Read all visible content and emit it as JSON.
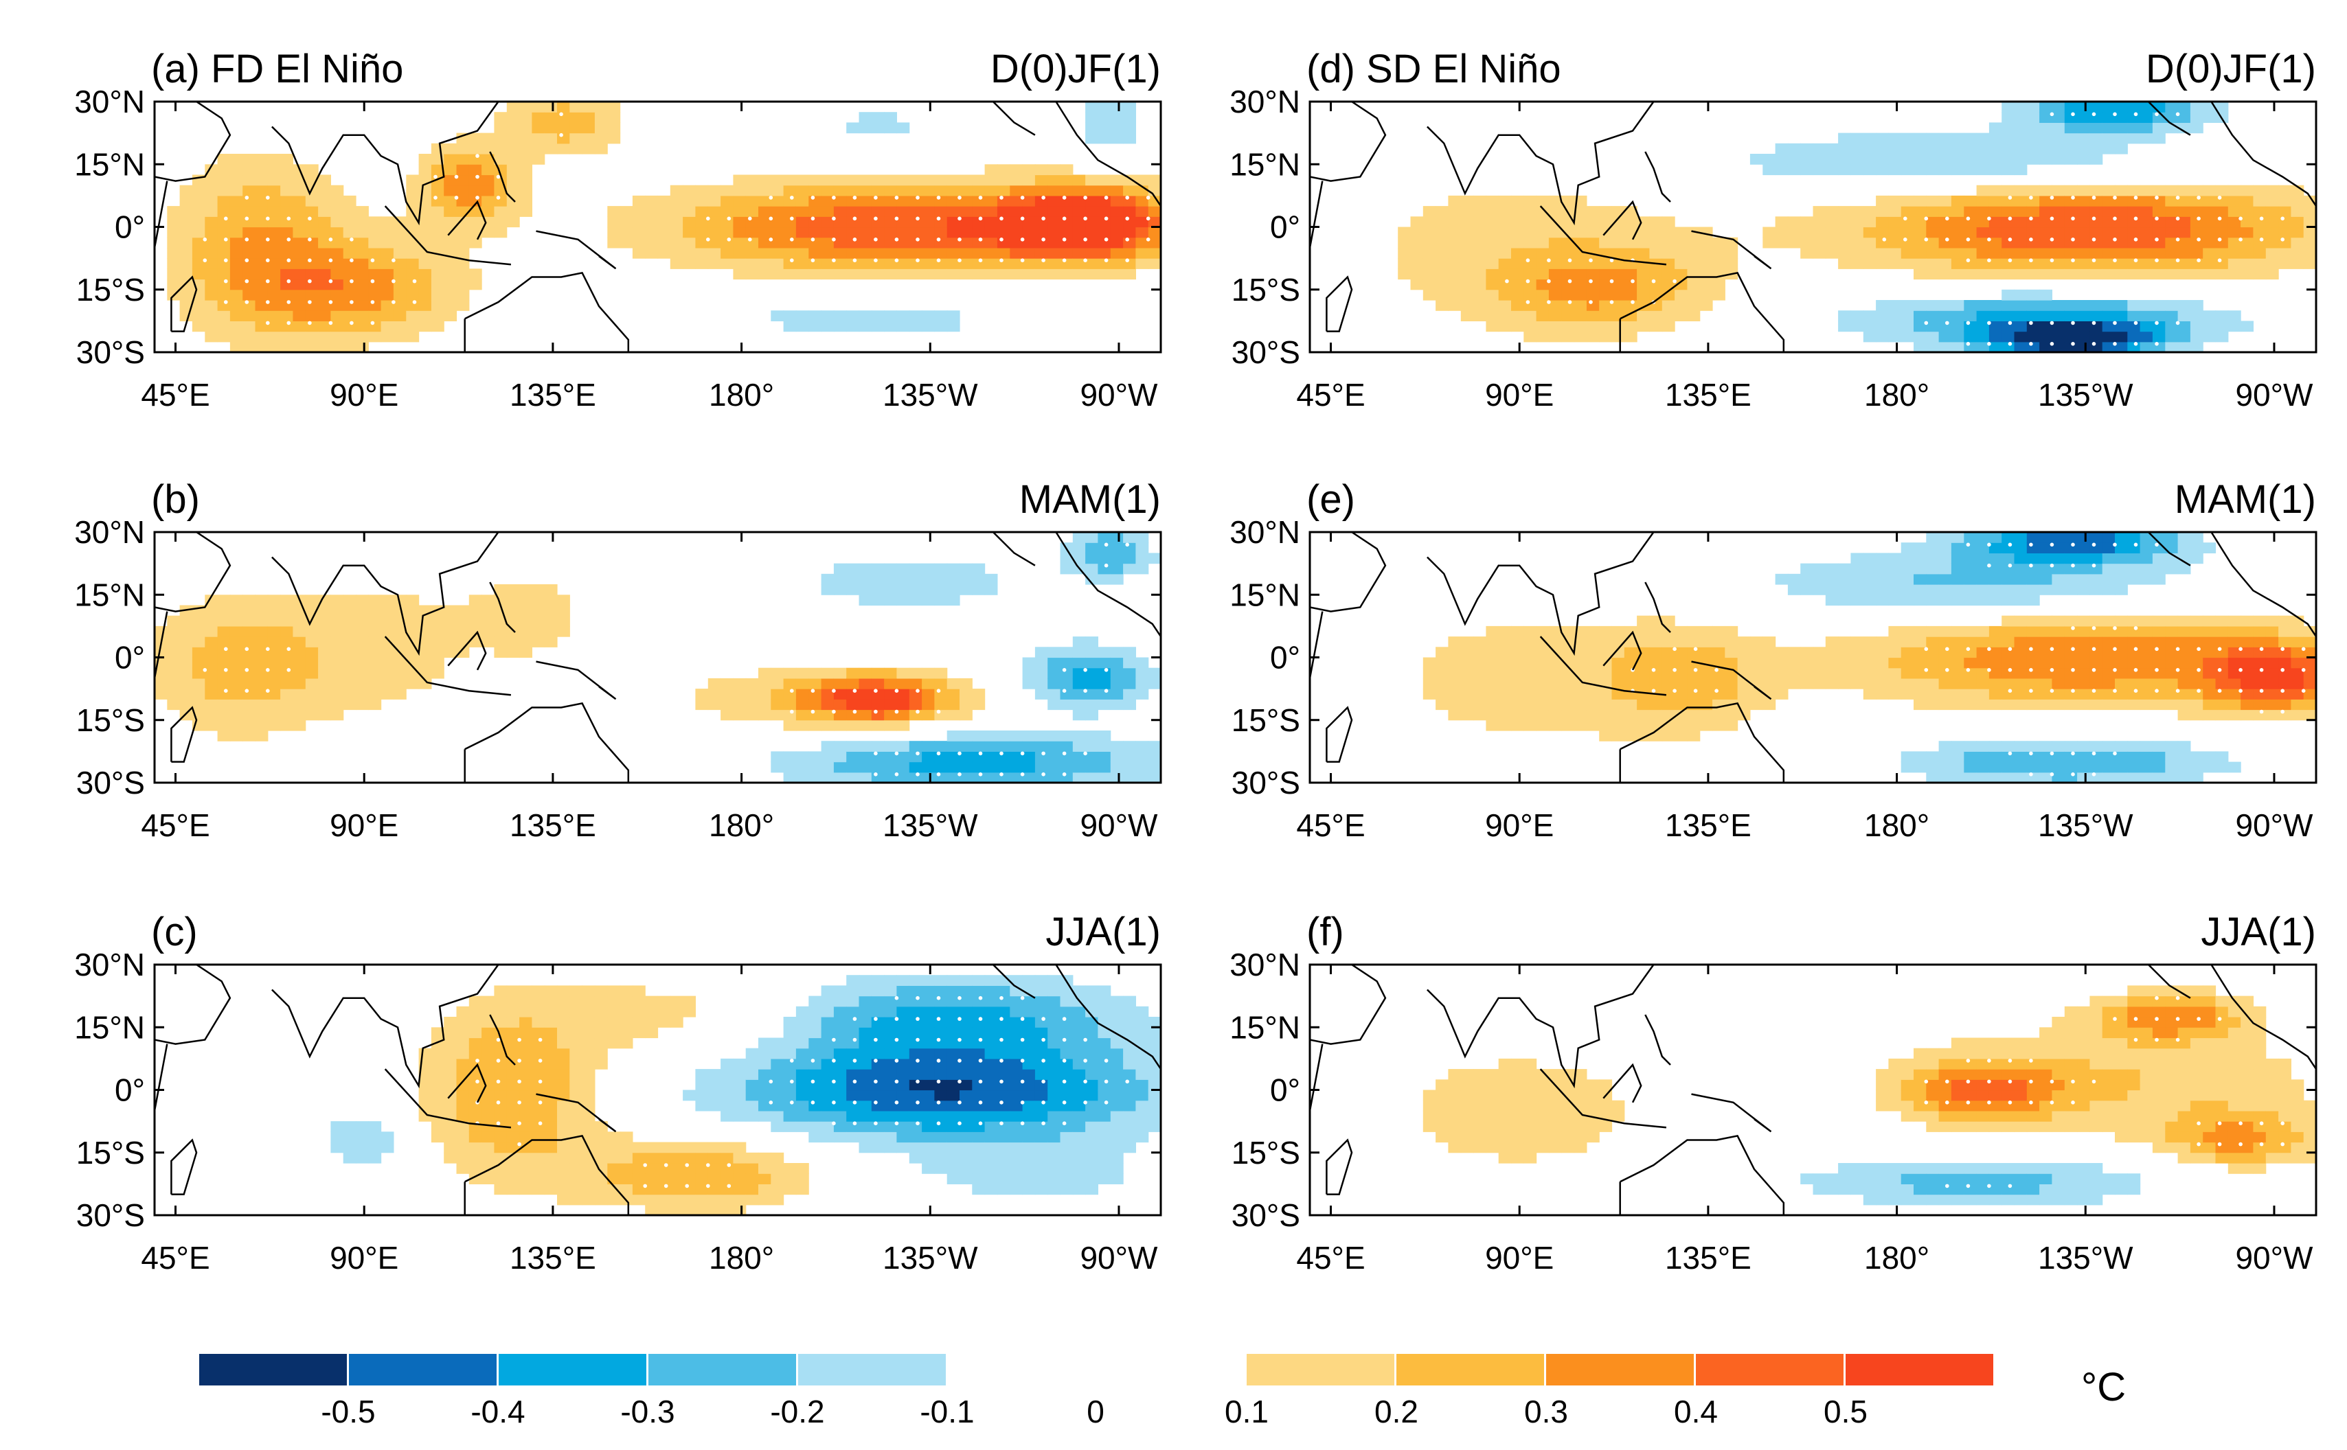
{
  "figure": {
    "colorbar_unit": "°C",
    "zero_label": "0"
  },
  "chart_data": {
    "type": "heatmap",
    "description_units": "SST anomaly (°C), stippling = significant",
    "axes": {
      "lon_ticks": [
        "45°E",
        "90°E",
        "135°E",
        "180°",
        "135°W",
        "90°W"
      ],
      "lon_tick_values": [
        45,
        90,
        135,
        180,
        225,
        270
      ],
      "lat_ticks": [
        "30°N",
        "15°N",
        "0°",
        "15°S",
        "30°S"
      ],
      "lat_tick_values": [
        30,
        15,
        0,
        -15,
        -30
      ],
      "xlim": [
        40,
        280
      ],
      "ylim": [
        -30,
        30
      ]
    },
    "colorbar": {
      "negative_colors": [
        "#08306b",
        "#0a6bbb",
        "#02a8e0",
        "#4cbde6",
        "#a8dff4"
      ],
      "negative_labels": [
        "-0.5",
        "-0.4",
        "-0.3",
        "-0.2",
        "-0.1"
      ],
      "positive_colors": [
        "#fdd882",
        "#fcbc3f",
        "#fb8f1e",
        "#fb6421",
        "#f7451e"
      ],
      "positive_labels": [
        "0.1",
        "0.2",
        "0.3",
        "0.4",
        "0.5"
      ]
    },
    "panels": [
      {
        "id": "a",
        "label": "(a) FD El Niño",
        "season": "D(0)JF(1)",
        "blobs": [
          {
            "lon": 220,
            "lat": 0,
            "rx": 58,
            "ry": 11,
            "v": 0.5
          },
          {
            "lon": 262,
            "lat": 1,
            "rx": 18,
            "ry": 8,
            "v": 0.55
          },
          {
            "lon": 210,
            "lat": -22,
            "rx": 40,
            "ry": 6,
            "v": -0.15
          },
          {
            "lon": 212,
            "lat": 24,
            "rx": 18,
            "ry": 8,
            "v": -0.12
          },
          {
            "lon": 268,
            "lat": 25,
            "rx": 8,
            "ry": 8,
            "v": -0.2
          },
          {
            "lon": 65,
            "lat": -5,
            "rx": 22,
            "ry": 22,
            "v": 0.3
          },
          {
            "lon": 90,
            "lat": -15,
            "rx": 25,
            "ry": 12,
            "v": 0.3
          },
          {
            "lon": 115,
            "lat": 10,
            "rx": 12,
            "ry": 10,
            "v": 0.35
          },
          {
            "lon": 138,
            "lat": 25,
            "rx": 15,
            "ry": 8,
            "v": 0.25
          }
        ]
      },
      {
        "id": "b",
        "label": "(b)",
        "season": "MAM(1)",
        "blobs": [
          {
            "lon": 60,
            "lat": -2,
            "rx": 22,
            "ry": 18,
            "v": 0.25
          },
          {
            "lon": 95,
            "lat": 3,
            "rx": 22,
            "ry": 18,
            "v": 0.15
          },
          {
            "lon": 130,
            "lat": 10,
            "rx": 15,
            "ry": 12,
            "v": 0.15
          },
          {
            "lon": 205,
            "lat": -10,
            "rx": 38,
            "ry": 8,
            "v": 0.25
          },
          {
            "lon": 212,
            "lat": -10,
            "rx": 14,
            "ry": 5,
            "v": 0.4
          },
          {
            "lon": 235,
            "lat": -25,
            "rx": 45,
            "ry": 7,
            "v": -0.35
          },
          {
            "lon": 262,
            "lat": -5,
            "rx": 16,
            "ry": 8,
            "v": -0.35
          },
          {
            "lon": 220,
            "lat": 18,
            "rx": 35,
            "ry": 8,
            "v": -0.15
          },
          {
            "lon": 268,
            "lat": 25,
            "rx": 10,
            "ry": 6,
            "v": -0.3
          }
        ]
      },
      {
        "id": "c",
        "label": "(c)",
        "season": "JJA(1)",
        "blobs": [
          {
            "lon": 228,
            "lat": 0,
            "rx": 50,
            "ry": 12,
            "v": -0.5
          },
          {
            "lon": 230,
            "lat": 18,
            "rx": 42,
            "ry": 10,
            "v": -0.3
          },
          {
            "lon": 250,
            "lat": -20,
            "rx": 28,
            "ry": 8,
            "v": -0.15
          },
          {
            "lon": 125,
            "lat": 0,
            "rx": 22,
            "ry": 22,
            "v": 0.3
          },
          {
            "lon": 170,
            "lat": -20,
            "rx": 28,
            "ry": 9,
            "v": 0.3
          },
          {
            "lon": 165,
            "lat": 18,
            "rx": 30,
            "ry": 10,
            "v": 0.15
          },
          {
            "lon": 90,
            "lat": -12,
            "rx": 10,
            "ry": 8,
            "v": -0.2
          },
          {
            "lon": 75,
            "lat": 10,
            "rx": 8,
            "ry": 6,
            "v": 0.1
          }
        ]
      },
      {
        "id": "d",
        "label": "(d) SD El Niño",
        "season": "D(0)JF(1)",
        "blobs": [
          {
            "lon": 225,
            "lat": 0,
            "rx": 55,
            "ry": 12,
            "v": 0.5
          },
          {
            "lon": 195,
            "lat": 15,
            "rx": 60,
            "ry": 8,
            "v": -0.25
          },
          {
            "lon": 215,
            "lat": -22,
            "rx": 45,
            "ry": 7,
            "v": -0.35
          },
          {
            "lon": 222,
            "lat": -27,
            "rx": 20,
            "ry": 4,
            "v": -0.5
          },
          {
            "lon": 232,
            "lat": 28,
            "rx": 22,
            "ry": 5,
            "v": -0.4
          },
          {
            "lon": 90,
            "lat": -5,
            "rx": 45,
            "ry": 22,
            "v": 0.15
          },
          {
            "lon": 110,
            "lat": -15,
            "rx": 25,
            "ry": 10,
            "v": 0.25
          }
        ]
      },
      {
        "id": "e",
        "label": "(e)",
        "season": "MAM(1)",
        "blobs": [
          {
            "lon": 225,
            "lat": 0,
            "rx": 55,
            "ry": 12,
            "v": 0.4
          },
          {
            "lon": 270,
            "lat": -5,
            "rx": 15,
            "ry": 8,
            "v": 0.45
          },
          {
            "lon": 200,
            "lat": 17,
            "rx": 55,
            "ry": 9,
            "v": -0.25
          },
          {
            "lon": 222,
            "lat": 28,
            "rx": 25,
            "ry": 5,
            "v": -0.45
          },
          {
            "lon": 220,
            "lat": -25,
            "rx": 40,
            "ry": 6,
            "v": -0.3
          },
          {
            "lon": 95,
            "lat": -5,
            "rx": 45,
            "ry": 20,
            "v": 0.15
          },
          {
            "lon": 130,
            "lat": -5,
            "rx": 18,
            "ry": 12,
            "v": 0.2
          }
        ]
      },
      {
        "id": "f",
        "label": "(f)",
        "season": "JJA(1)",
        "blobs": [
          {
            "lon": 232,
            "lat": 2,
            "rx": 52,
            "ry": 14,
            "v": 0.2
          },
          {
            "lon": 200,
            "lat": 0,
            "rx": 18,
            "ry": 7,
            "v": 0.35
          },
          {
            "lon": 245,
            "lat": 18,
            "rx": 18,
            "ry": 6,
            "v": 0.35
          },
          {
            "lon": 262,
            "lat": -12,
            "rx": 18,
            "ry": 7,
            "v": 0.3
          },
          {
            "lon": 200,
            "lat": -22,
            "rx": 45,
            "ry": 6,
            "v": -0.25
          },
          {
            "lon": 200,
            "lat": 27,
            "rx": 40,
            "ry": 4,
            "v": -0.1
          },
          {
            "lon": 90,
            "lat": -5,
            "rx": 38,
            "ry": 18,
            "v": 0.15
          }
        ]
      }
    ]
  }
}
